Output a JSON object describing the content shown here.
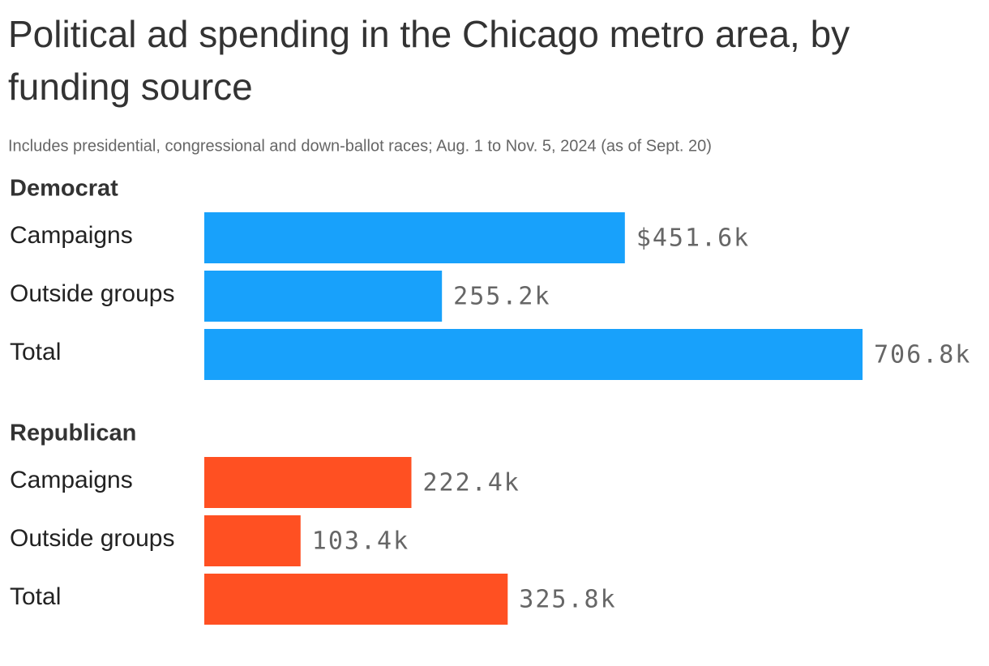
{
  "title": "Political ad spending in the Chicago metro area, by funding source",
  "subtitle": "Includes presidential, congressional and down-ballot races; Aug. 1 to Nov. 5, 2024 (as of Sept. 20)",
  "chart_data": [
    {
      "type": "bar",
      "title": "Democrat",
      "categories": [
        "Campaigns",
        "Outside groups",
        "Total"
      ],
      "values": [
        451.6,
        255.2,
        706.8
      ],
      "value_labels": [
        "$451.6k",
        "255.2k",
        "706.8k"
      ],
      "color": "#18a1fb"
    },
    {
      "type": "bar",
      "title": "Republican",
      "categories": [
        "Campaigns",
        "Outside groups",
        "Total"
      ],
      "values": [
        222.4,
        103.4,
        325.8
      ],
      "value_labels": [
        "222.4k",
        "103.4k",
        "325.8k"
      ],
      "color": "#ff5022"
    }
  ]
}
